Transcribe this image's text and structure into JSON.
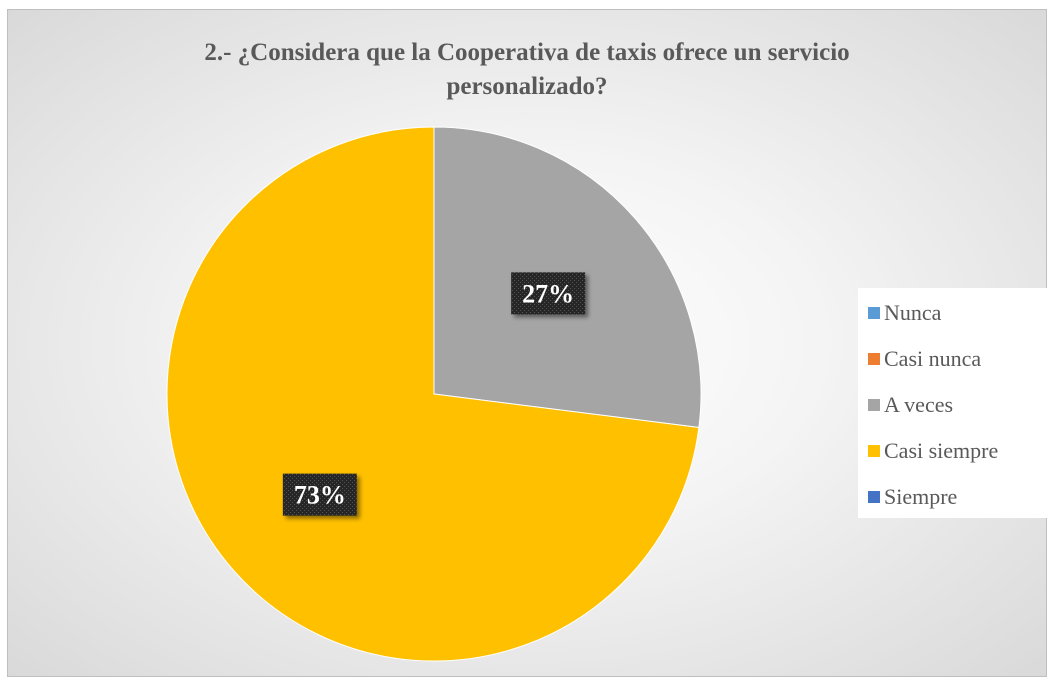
{
  "chart_data": {
    "type": "pie",
    "title_lines": [
      "2.- ¿Considera que la Cooperativa de taxis ofrece un servicio",
      "personalizado?"
    ],
    "categories": [
      "Nunca",
      "Casi nunca",
      "A veces",
      "Casi siempre",
      "Siempre"
    ],
    "values": [
      0,
      0,
      27,
      73,
      0
    ],
    "data_labels": [
      "",
      "",
      "27%",
      "73%",
      ""
    ],
    "colors": [
      "#5B9BD5",
      "#ED7D31",
      "#A5A5A5",
      "#FFC000",
      "#4472C4"
    ],
    "legend_position": "right",
    "start_angle": "top, clockwise"
  }
}
